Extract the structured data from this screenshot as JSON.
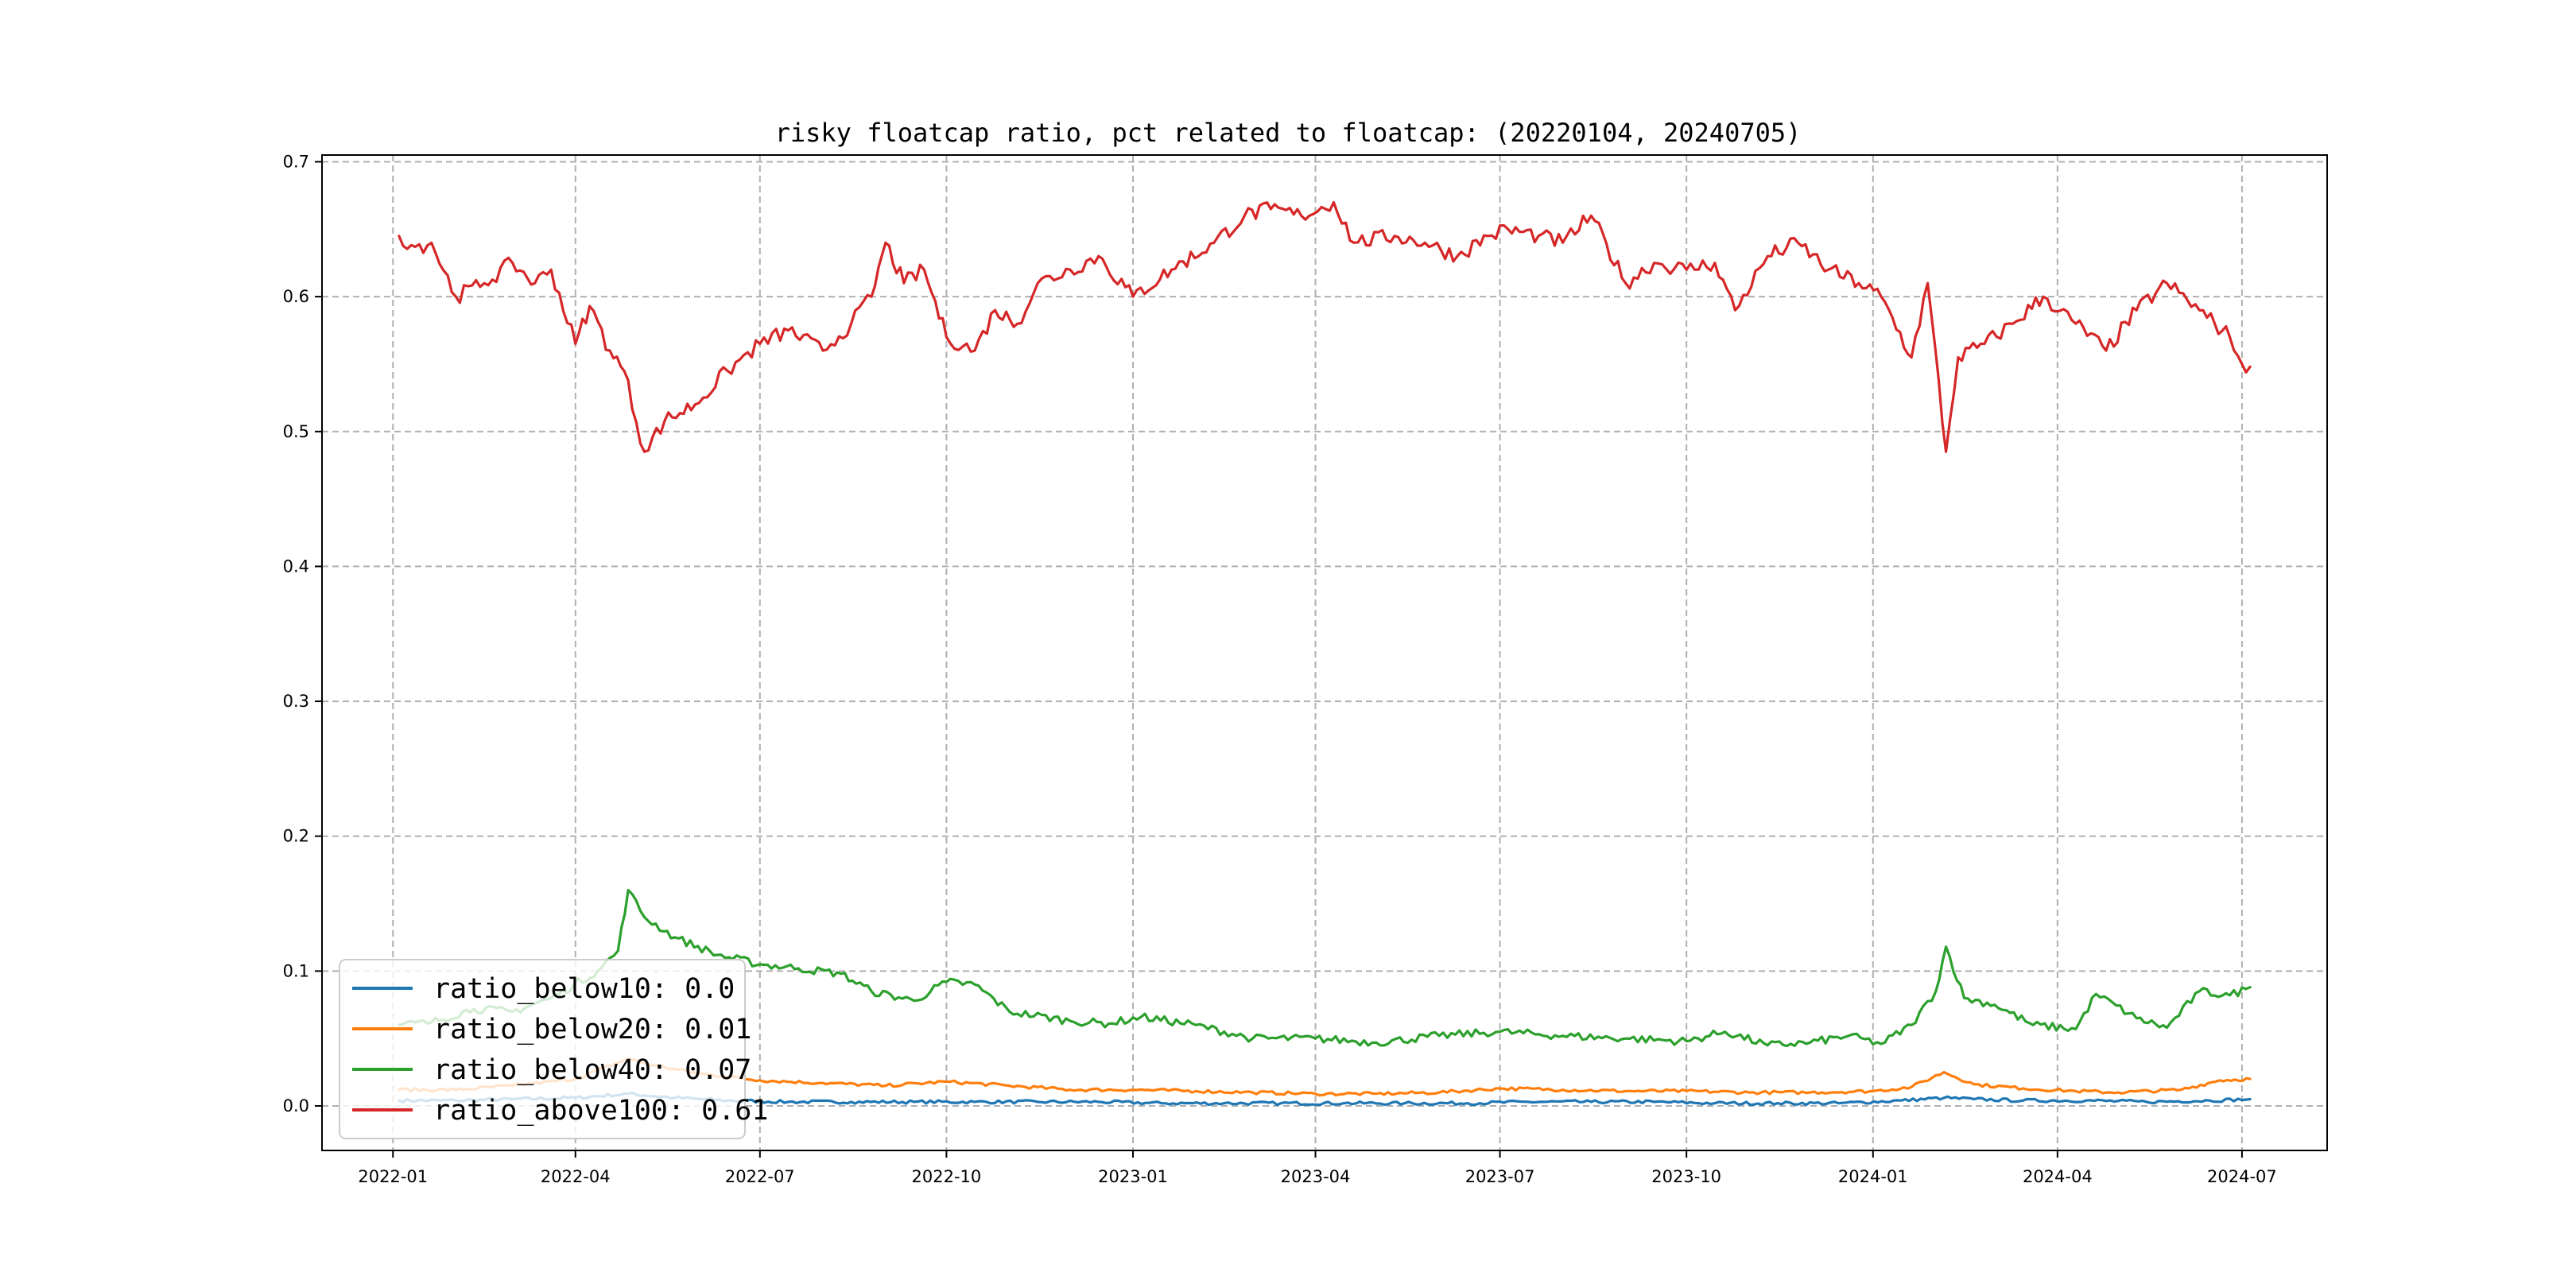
{
  "chart_data": {
    "type": "line",
    "title": "risky floatcap ratio, pct related to floatcap: (20220104, 20240705)",
    "xlabel": "",
    "ylabel": "",
    "xlim": [
      "2021-11-27",
      "2024-08-12"
    ],
    "ylim": [
      -0.033,
      0.705
    ],
    "x_ticks": [
      "2022-01",
      "2022-04",
      "2022-07",
      "2022-10",
      "2023-01",
      "2023-04",
      "2023-07",
      "2023-10",
      "2024-01",
      "2024-04",
      "2024-07"
    ],
    "y_ticks": [
      0.0,
      0.1,
      0.2,
      0.3,
      0.4,
      0.5,
      0.6,
      0.7
    ],
    "y_tick_labels": [
      "0.0",
      "0.1",
      "0.2",
      "0.3",
      "0.4",
      "0.5",
      "0.6",
      "0.7"
    ],
    "grid": true,
    "legend_position": "lower-left",
    "series": [
      {
        "name": "ratio_below10: 0.0",
        "color": "#1f77b4",
        "points": [
          [
            "2022-01-04",
            0.004
          ],
          [
            "2022-02-01",
            0.004
          ],
          [
            "2022-03-01",
            0.005
          ],
          [
            "2022-04-01",
            0.006
          ],
          [
            "2022-04-27",
            0.009
          ],
          [
            "2022-05-20",
            0.006
          ],
          [
            "2022-06-15",
            0.004
          ],
          [
            "2022-07-15",
            0.003
          ],
          [
            "2022-08-15",
            0.003
          ],
          [
            "2022-09-15",
            0.003
          ],
          [
            "2022-10-15",
            0.003
          ],
          [
            "2022-11-15",
            0.003
          ],
          [
            "2022-12-15",
            0.003
          ],
          [
            "2023-01-15",
            0.002
          ],
          [
            "2023-02-15",
            0.002
          ],
          [
            "2023-03-15",
            0.002
          ],
          [
            "2023-04-15",
            0.002
          ],
          [
            "2023-05-15",
            0.002
          ],
          [
            "2023-06-15",
            0.002
          ],
          [
            "2023-07-15",
            0.003
          ],
          [
            "2023-08-15",
            0.003
          ],
          [
            "2023-09-15",
            0.003
          ],
          [
            "2023-10-15",
            0.002
          ],
          [
            "2023-11-15",
            0.002
          ],
          [
            "2023-12-15",
            0.002
          ],
          [
            "2024-01-15",
            0.004
          ],
          [
            "2024-02-05",
            0.006
          ],
          [
            "2024-02-20",
            0.005
          ],
          [
            "2024-03-15",
            0.004
          ],
          [
            "2024-04-15",
            0.004
          ],
          [
            "2024-05-15",
            0.003
          ],
          [
            "2024-06-15",
            0.004
          ],
          [
            "2024-07-05",
            0.005
          ]
        ]
      },
      {
        "name": "ratio_below20: 0.01",
        "color": "#ff7f0e",
        "points": [
          [
            "2022-01-04",
            0.012
          ],
          [
            "2022-02-01",
            0.012
          ],
          [
            "2022-03-01",
            0.015
          ],
          [
            "2022-04-01",
            0.02
          ],
          [
            "2022-04-27",
            0.035
          ],
          [
            "2022-05-10",
            0.03
          ],
          [
            "2022-06-01",
            0.024
          ],
          [
            "2022-07-01",
            0.019
          ],
          [
            "2022-08-01",
            0.017
          ],
          [
            "2022-09-01",
            0.015
          ],
          [
            "2022-10-01",
            0.018
          ],
          [
            "2022-11-01",
            0.015
          ],
          [
            "2022-12-01",
            0.012
          ],
          [
            "2023-01-01",
            0.012
          ],
          [
            "2023-02-01",
            0.011
          ],
          [
            "2023-03-01",
            0.01
          ],
          [
            "2023-04-01",
            0.009
          ],
          [
            "2023-05-01",
            0.009
          ],
          [
            "2023-06-01",
            0.01
          ],
          [
            "2023-07-01",
            0.013
          ],
          [
            "2023-08-01",
            0.012
          ],
          [
            "2023-09-01",
            0.011
          ],
          [
            "2023-10-01",
            0.011
          ],
          [
            "2023-11-01",
            0.01
          ],
          [
            "2023-12-01",
            0.01
          ],
          [
            "2024-01-01",
            0.011
          ],
          [
            "2024-01-20",
            0.014
          ],
          [
            "2024-02-05",
            0.025
          ],
          [
            "2024-02-20",
            0.016
          ],
          [
            "2024-03-15",
            0.013
          ],
          [
            "2024-04-10",
            0.011
          ],
          [
            "2024-05-01",
            0.01
          ],
          [
            "2024-06-01",
            0.012
          ],
          [
            "2024-06-20",
            0.019
          ],
          [
            "2024-07-05",
            0.02
          ]
        ]
      },
      {
        "name": "ratio_below40: 0.07",
        "color": "#2ca02c",
        "points": [
          [
            "2022-01-04",
            0.06
          ],
          [
            "2022-01-20",
            0.062
          ],
          [
            "2022-02-10",
            0.072
          ],
          [
            "2022-03-01",
            0.07
          ],
          [
            "2022-03-20",
            0.08
          ],
          [
            "2022-04-12",
            0.1
          ],
          [
            "2022-04-22",
            0.115
          ],
          [
            "2022-04-27",
            0.16
          ],
          [
            "2022-05-05",
            0.14
          ],
          [
            "2022-05-20",
            0.125
          ],
          [
            "2022-06-10",
            0.112
          ],
          [
            "2022-07-01",
            0.105
          ],
          [
            "2022-07-20",
            0.102
          ],
          [
            "2022-08-10",
            0.098
          ],
          [
            "2022-08-25",
            0.085
          ],
          [
            "2022-09-15",
            0.078
          ],
          [
            "2022-10-01",
            0.092
          ],
          [
            "2022-10-15",
            0.09
          ],
          [
            "2022-11-01",
            0.07
          ],
          [
            "2022-12-01",
            0.063
          ],
          [
            "2022-12-20",
            0.061
          ],
          [
            "2023-01-05",
            0.066
          ],
          [
            "2023-02-01",
            0.06
          ],
          [
            "2023-03-01",
            0.05
          ],
          [
            "2023-04-01",
            0.05
          ],
          [
            "2023-05-01",
            0.047
          ],
          [
            "2023-06-01",
            0.052
          ],
          [
            "2023-07-01",
            0.055
          ],
          [
            "2023-08-01",
            0.052
          ],
          [
            "2023-09-01",
            0.05
          ],
          [
            "2023-10-01",
            0.048
          ],
          [
            "2023-10-20",
            0.055
          ],
          [
            "2023-11-10",
            0.045
          ],
          [
            "2023-12-01",
            0.047
          ],
          [
            "2023-12-20",
            0.052
          ],
          [
            "2024-01-05",
            0.046
          ],
          [
            "2024-01-20",
            0.06
          ],
          [
            "2024-02-01",
            0.085
          ],
          [
            "2024-02-06",
            0.118
          ],
          [
            "2024-02-15",
            0.08
          ],
          [
            "2024-03-01",
            0.075
          ],
          [
            "2024-03-20",
            0.06
          ],
          [
            "2024-04-10",
            0.057
          ],
          [
            "2024-04-20",
            0.083
          ],
          [
            "2024-05-10",
            0.065
          ],
          [
            "2024-05-25",
            0.058
          ],
          [
            "2024-06-10",
            0.085
          ],
          [
            "2024-06-25",
            0.082
          ],
          [
            "2024-07-05",
            0.088
          ]
        ]
      },
      {
        "name": "ratio_above100: 0.61",
        "color": "#d62728",
        "points": [
          [
            "2022-01-04",
            0.645
          ],
          [
            "2022-01-12",
            0.637
          ],
          [
            "2022-01-20",
            0.64
          ],
          [
            "2022-02-01",
            0.6
          ],
          [
            "2022-02-15",
            0.61
          ],
          [
            "2022-03-01",
            0.625
          ],
          [
            "2022-03-12",
            0.61
          ],
          [
            "2022-03-20",
            0.62
          ],
          [
            "2022-04-01",
            0.565
          ],
          [
            "2022-04-08",
            0.593
          ],
          [
            "2022-04-18",
            0.56
          ],
          [
            "2022-04-25",
            0.545
          ],
          [
            "2022-05-05",
            0.485
          ],
          [
            "2022-05-15",
            0.508
          ],
          [
            "2022-05-30",
            0.52
          ],
          [
            "2022-06-15",
            0.545
          ],
          [
            "2022-07-01",
            0.565
          ],
          [
            "2022-07-15",
            0.575
          ],
          [
            "2022-08-01",
            0.56
          ],
          [
            "2022-08-15",
            0.58
          ],
          [
            "2022-08-25",
            0.6
          ],
          [
            "2022-09-01",
            0.64
          ],
          [
            "2022-09-10",
            0.61
          ],
          [
            "2022-09-20",
            0.62
          ],
          [
            "2022-10-01",
            0.57
          ],
          [
            "2022-10-15",
            0.56
          ],
          [
            "2022-10-25",
            0.59
          ],
          [
            "2022-11-05",
            0.58
          ],
          [
            "2022-11-15",
            0.61
          ],
          [
            "2022-12-01",
            0.62
          ],
          [
            "2022-12-15",
            0.63
          ],
          [
            "2023-01-01",
            0.6
          ],
          [
            "2023-01-20",
            0.62
          ],
          [
            "2023-02-10",
            0.64
          ],
          [
            "2023-02-25",
            0.66
          ],
          [
            "2023-03-10",
            0.665
          ],
          [
            "2023-03-25",
            0.66
          ],
          [
            "2023-04-10",
            0.67
          ],
          [
            "2023-04-20",
            0.64
          ],
          [
            "2023-05-10",
            0.645
          ],
          [
            "2023-05-25",
            0.64
          ],
          [
            "2023-06-10",
            0.63
          ],
          [
            "2023-06-25",
            0.645
          ],
          [
            "2023-07-05",
            0.65
          ],
          [
            "2023-07-20",
            0.645
          ],
          [
            "2023-08-01",
            0.64
          ],
          [
            "2023-08-15",
            0.66
          ],
          [
            "2023-09-01",
            0.61
          ],
          [
            "2023-09-15",
            0.625
          ],
          [
            "2023-10-01",
            0.62
          ],
          [
            "2023-10-15",
            0.625
          ],
          [
            "2023-10-25",
            0.59
          ],
          [
            "2023-11-10",
            0.63
          ],
          [
            "2023-11-25",
            0.64
          ],
          [
            "2023-12-10",
            0.62
          ],
          [
            "2023-12-25",
            0.61
          ],
          [
            "2024-01-05",
            0.6
          ],
          [
            "2024-01-20",
            0.555
          ],
          [
            "2024-01-28",
            0.61
          ],
          [
            "2024-02-06",
            0.485
          ],
          [
            "2024-02-12",
            0.555
          ],
          [
            "2024-02-25",
            0.565
          ],
          [
            "2024-03-10",
            0.58
          ],
          [
            "2024-03-25",
            0.6
          ],
          [
            "2024-04-10",
            0.58
          ],
          [
            "2024-04-25",
            0.56
          ],
          [
            "2024-05-10",
            0.59
          ],
          [
            "2024-05-25",
            0.61
          ],
          [
            "2024-06-10",
            0.59
          ],
          [
            "2024-06-25",
            0.57
          ],
          [
            "2024-07-01",
            0.55
          ],
          [
            "2024-07-05",
            0.548
          ]
        ]
      }
    ]
  }
}
